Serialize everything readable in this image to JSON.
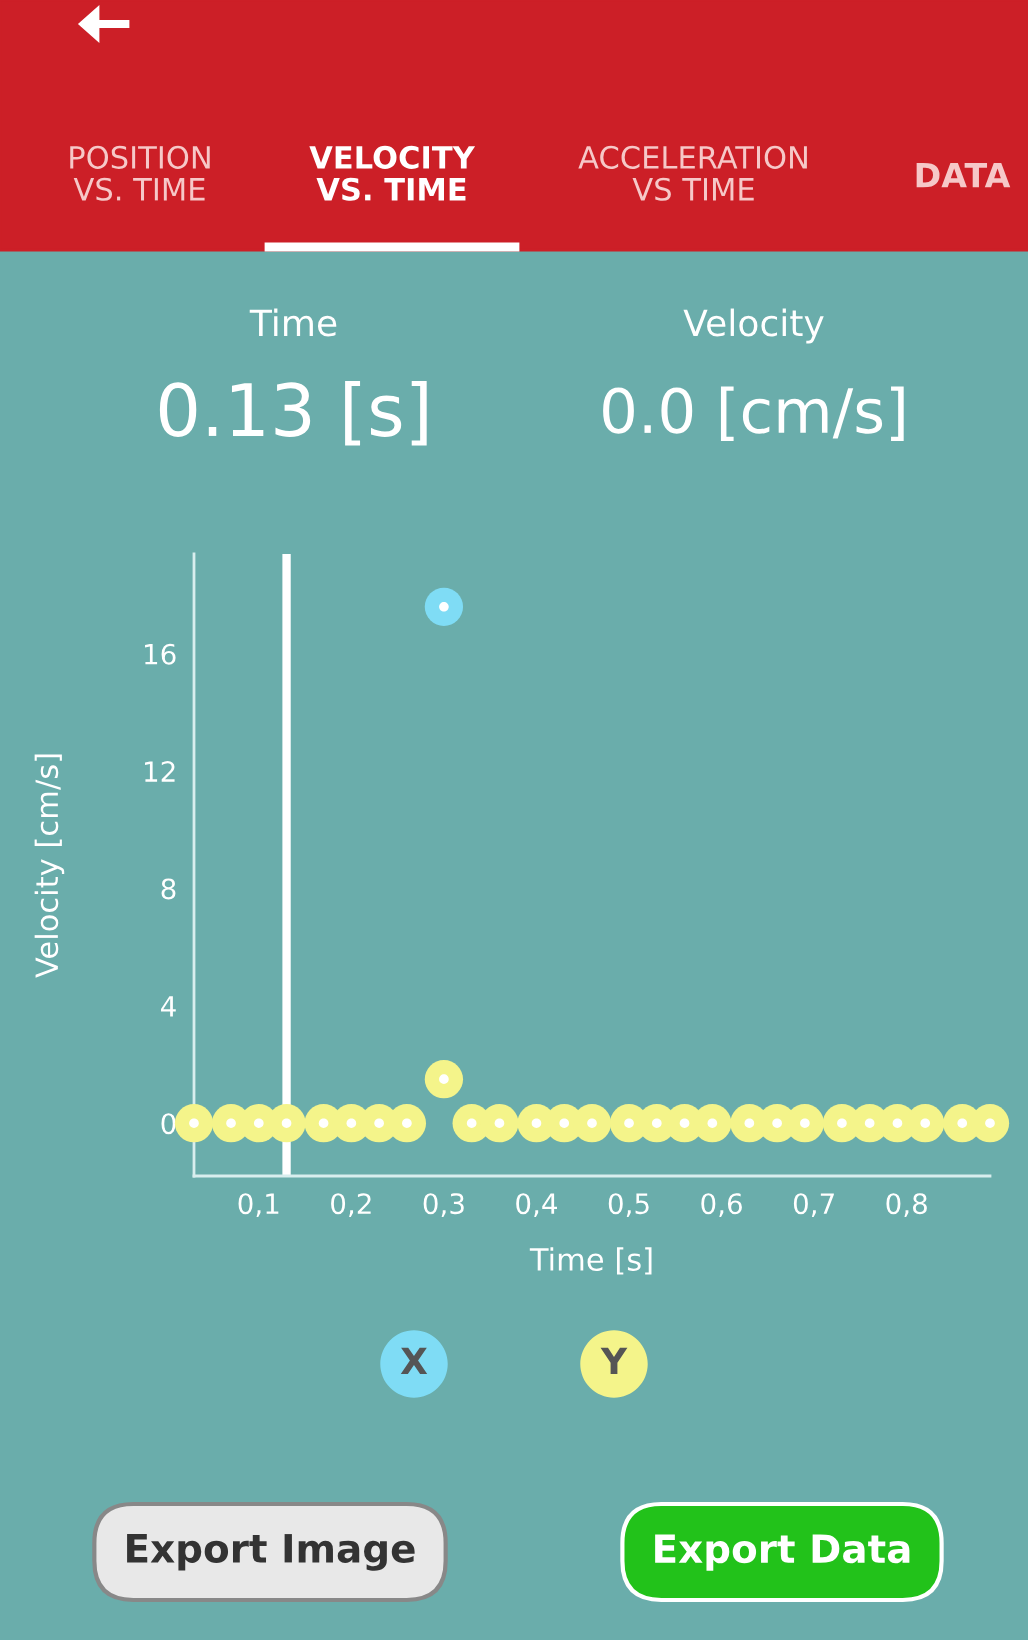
{
  "chart_data": {
    "type": "scatter",
    "xlabel": "Time [s]",
    "ylabel": "Velocity [cm/s]",
    "series": [
      {
        "name": "X",
        "color": "#7fdcf5",
        "x": [
          0.3
        ],
        "values": [
          17.6
        ]
      },
      {
        "name": "Y",
        "color": "#f4f48a",
        "x": [
          0.03,
          0.07,
          0.1,
          0.13,
          0.17,
          0.2,
          0.23,
          0.26,
          0.3,
          0.33,
          0.36,
          0.4,
          0.43,
          0.46,
          0.5,
          0.53,
          0.56,
          0.59,
          0.63,
          0.66,
          0.69,
          0.73,
          0.76,
          0.79,
          0.82,
          0.86,
          0.89
        ],
        "values": [
          0,
          0,
          0,
          0,
          0,
          0,
          0,
          0,
          1.5,
          0,
          0,
          0,
          0,
          0,
          0,
          0,
          0,
          0,
          0,
          0,
          0,
          0,
          0,
          0,
          0,
          0,
          0
        ]
      }
    ],
    "xlim": [
      0.03,
      0.89
    ],
    "ylim": [
      -1.8,
      19.4
    ],
    "xticks": [
      {
        "value": 0.1,
        "label": "0,1"
      },
      {
        "value": 0.2,
        "label": "0,2"
      },
      {
        "value": 0.3,
        "label": "0,3"
      },
      {
        "value": 0.4,
        "label": "0,4"
      },
      {
        "value": 0.5,
        "label": "0,5"
      },
      {
        "value": 0.6,
        "label": "0,6"
      },
      {
        "value": 0.7,
        "label": "0,7"
      },
      {
        "value": 0.8,
        "label": "0,8"
      }
    ],
    "yticks": [
      0,
      4,
      8,
      12,
      16
    ],
    "ref_lines": [
      {
        "axis": "x",
        "value": 0.13,
        "color": "#ffffff"
      }
    ],
    "grid": false,
    "legend": "bottom",
    "marker": "circle",
    "annotations": [
      "POSITION\nVS. TIME",
      "VELOCITY\nVS. TIME",
      "ACCELERATION\nVS TIME",
      "DATA",
      "Time",
      "0.13 [s]",
      "Velocity",
      "0.0 [cm/s]",
      "Export Image",
      "Export Data"
    ]
  }
}
